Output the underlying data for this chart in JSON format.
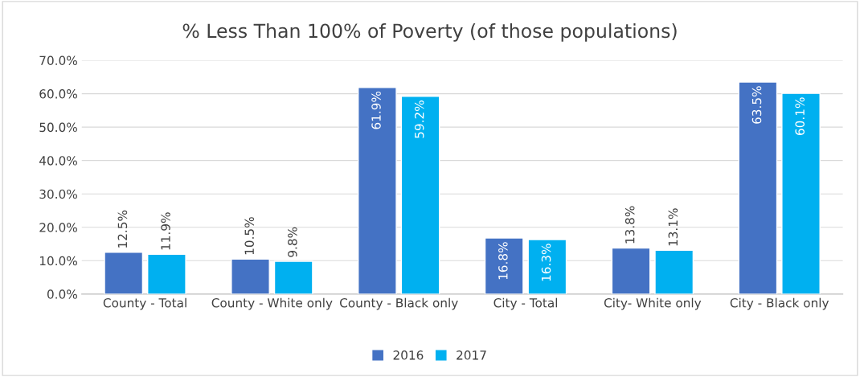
{
  "chart_data": {
    "type": "bar",
    "title": "% Less Than 100% of Poverty (of those populations)",
    "categories": [
      "County - Total",
      "County - White only",
      "County - Black only",
      "City - Total",
      "City- White only",
      "City - Black only"
    ],
    "series": [
      {
        "name": "2016",
        "color": "#4472c4",
        "values": [
          12.5,
          10.5,
          61.9,
          16.8,
          13.8,
          63.5
        ],
        "value_labels": [
          "12.5%",
          "10.5%",
          "61.9%",
          "16.8%",
          "13.8%",
          "63.5%"
        ]
      },
      {
        "name": "2017",
        "color": "#00b0f0",
        "values": [
          11.9,
          9.8,
          59.2,
          16.3,
          13.1,
          60.1
        ],
        "value_labels": [
          "11.9%",
          "9.8%",
          "59.2%",
          "16.3%",
          "13.1%",
          "60.1%"
        ]
      }
    ],
    "ylim": [
      0,
      70
    ],
    "yticks": [
      {
        "value": 0,
        "label": "0.0%"
      },
      {
        "value": 10,
        "label": "10.0%"
      },
      {
        "value": 20,
        "label": "20.0%"
      },
      {
        "value": 30,
        "label": "30.0%"
      },
      {
        "value": 40,
        "label": "40.0%"
      },
      {
        "value": 50,
        "label": "50.0%"
      },
      {
        "value": 60,
        "label": "60.0%"
      },
      {
        "value": 70,
        "label": "70.0%"
      }
    ],
    "grid": "y",
    "legend": "bottom"
  }
}
